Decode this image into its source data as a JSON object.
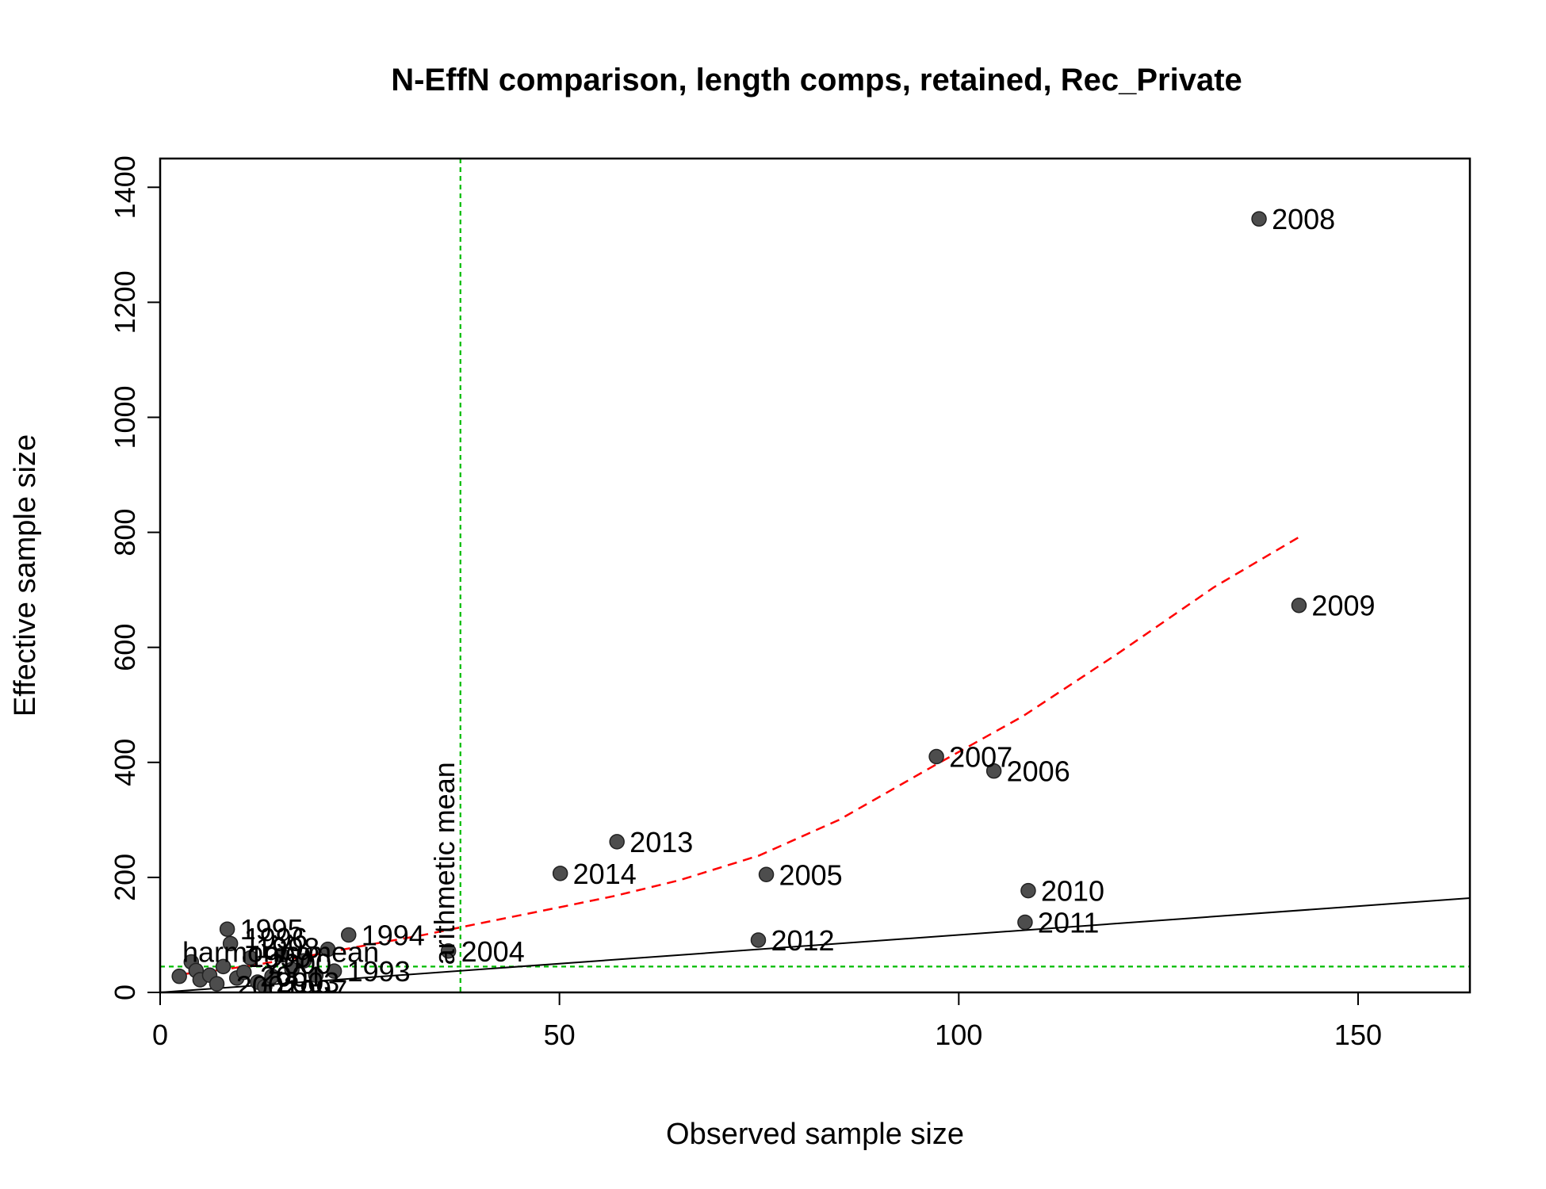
{
  "chart_data": {
    "type": "scatter",
    "title": "N-EffN comparison, length comps, retained, Rec_Private",
    "xlabel": "Observed sample size",
    "ylabel": "Effective sample size",
    "xlim": [
      0,
      164
    ],
    "ylim": [
      0,
      1450
    ],
    "xticks": [
      0,
      50,
      100,
      150
    ],
    "yticks": [
      0,
      200,
      400,
      600,
      800,
      1000,
      1200,
      1400
    ],
    "grid": false,
    "points": [
      {
        "label": "2008",
        "x": 137.6,
        "y": 1345
      },
      {
        "label": "2009",
        "x": 142.6,
        "y": 673
      },
      {
        "label": "2007",
        "x": 97.2,
        "y": 410
      },
      {
        "label": "2006",
        "x": 104.4,
        "y": 385
      },
      {
        "label": "2013",
        "x": 57.2,
        "y": 262
      },
      {
        "label": "2014",
        "x": 50.1,
        "y": 207
      },
      {
        "label": "2005",
        "x": 75.9,
        "y": 205
      },
      {
        "label": "2010",
        "x": 108.7,
        "y": 177
      },
      {
        "label": "2011",
        "x": 108.3,
        "y": 122
      },
      {
        "label": "2012",
        "x": 74.9,
        "y": 91
      },
      {
        "label": "2004",
        "x": 36.1,
        "y": 72
      },
      {
        "label": "1995",
        "x": 8.4,
        "y": 110
      },
      {
        "label": "1994",
        "x": 23.6,
        "y": 100
      },
      {
        "label": "1993",
        "x": 21.8,
        "y": 37
      },
      {
        "label": "",
        "x": 2.4,
        "y": 28
      },
      {
        "label": "",
        "x": 3.9,
        "y": 53
      },
      {
        "label": "",
        "x": 4.5,
        "y": 38
      },
      {
        "label": "",
        "x": 5.0,
        "y": 22
      },
      {
        "label": "",
        "x": 6.2,
        "y": 30
      },
      {
        "label": "",
        "x": 7.1,
        "y": 15
      },
      {
        "label": "",
        "x": 7.9,
        "y": 45
      },
      {
        "label": "",
        "x": 8.8,
        "y": 85
      },
      {
        "label": "",
        "x": 9.6,
        "y": 25
      },
      {
        "label": "",
        "x": 10.5,
        "y": 35
      },
      {
        "label": "",
        "x": 11.3,
        "y": 60
      },
      {
        "label": "",
        "x": 12.2,
        "y": 18
      },
      {
        "label": "",
        "x": 13.1,
        "y": 10
      },
      {
        "label": "",
        "x": 14.0,
        "y": 28
      },
      {
        "label": "",
        "x": 15.2,
        "y": 65
      },
      {
        "label": "",
        "x": 16.5,
        "y": 40
      },
      {
        "label": "",
        "x": 18.0,
        "y": 55
      },
      {
        "label": "",
        "x": 19.5,
        "y": 30
      },
      {
        "label": "",
        "x": 21.0,
        "y": 75
      }
    ],
    "crowded_labels": [
      "1996",
      "1998",
      "1999",
      "2000",
      "2001",
      "2002",
      "2003",
      "1997"
    ],
    "lines": [
      {
        "style": "solid",
        "color": "#000000",
        "x": [
          0,
          164
        ],
        "y": [
          0,
          164
        ]
      },
      {
        "style": "dashed",
        "color": "#ff0000",
        "x": [
          3,
          8,
          12,
          18,
          25,
          33,
          40,
          50,
          57,
          65,
          75,
          85,
          97,
          108,
          120,
          132,
          143
        ],
        "y": [
          32,
          40,
          48,
          62,
          80,
          100,
          120,
          148,
          168,
          195,
          238,
          300,
          395,
          480,
          590,
          705,
          795
        ]
      }
    ],
    "reference_lines": {
      "color": "#00bb00",
      "harmonic_mean": {
        "label": "harmonic mean",
        "y": 45
      },
      "arithmetic_mean": {
        "label": "arithmetic mean",
        "x": 37.6
      }
    },
    "point_color": "#4d4d4d"
  }
}
